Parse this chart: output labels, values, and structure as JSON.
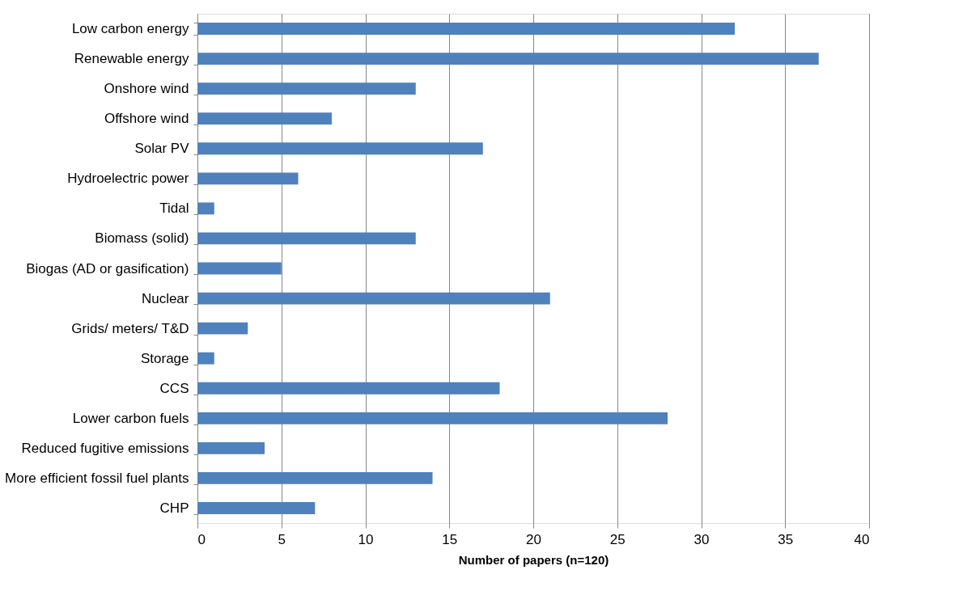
{
  "chart_data": {
    "type": "bar",
    "orientation": "horizontal",
    "xlabel": "Number of papers (n=120)",
    "categories": [
      "Low carbon energy",
      "Renewable energy",
      "Onshore wind",
      "Offshore wind",
      "Solar PV",
      "Hydroelectric power",
      "Tidal",
      "Biomass (solid)",
      "Biogas (AD or gasification)",
      "Nuclear",
      "Grids/ meters/ T&D",
      "Storage",
      "CCS",
      "Lower carbon fuels",
      "Reduced fugitive emissions",
      "More efficient fossil fuel plants",
      "CHP"
    ],
    "values": [
      32,
      37,
      13,
      8,
      17,
      6,
      1,
      13,
      5,
      21,
      3,
      1,
      18,
      28,
      4,
      14,
      7
    ],
    "color": "#4f81bd",
    "xlim": [
      0,
      40
    ],
    "xticks": [
      0,
      5,
      10,
      15,
      20,
      25,
      30,
      35,
      40
    ],
    "grid": "x"
  }
}
